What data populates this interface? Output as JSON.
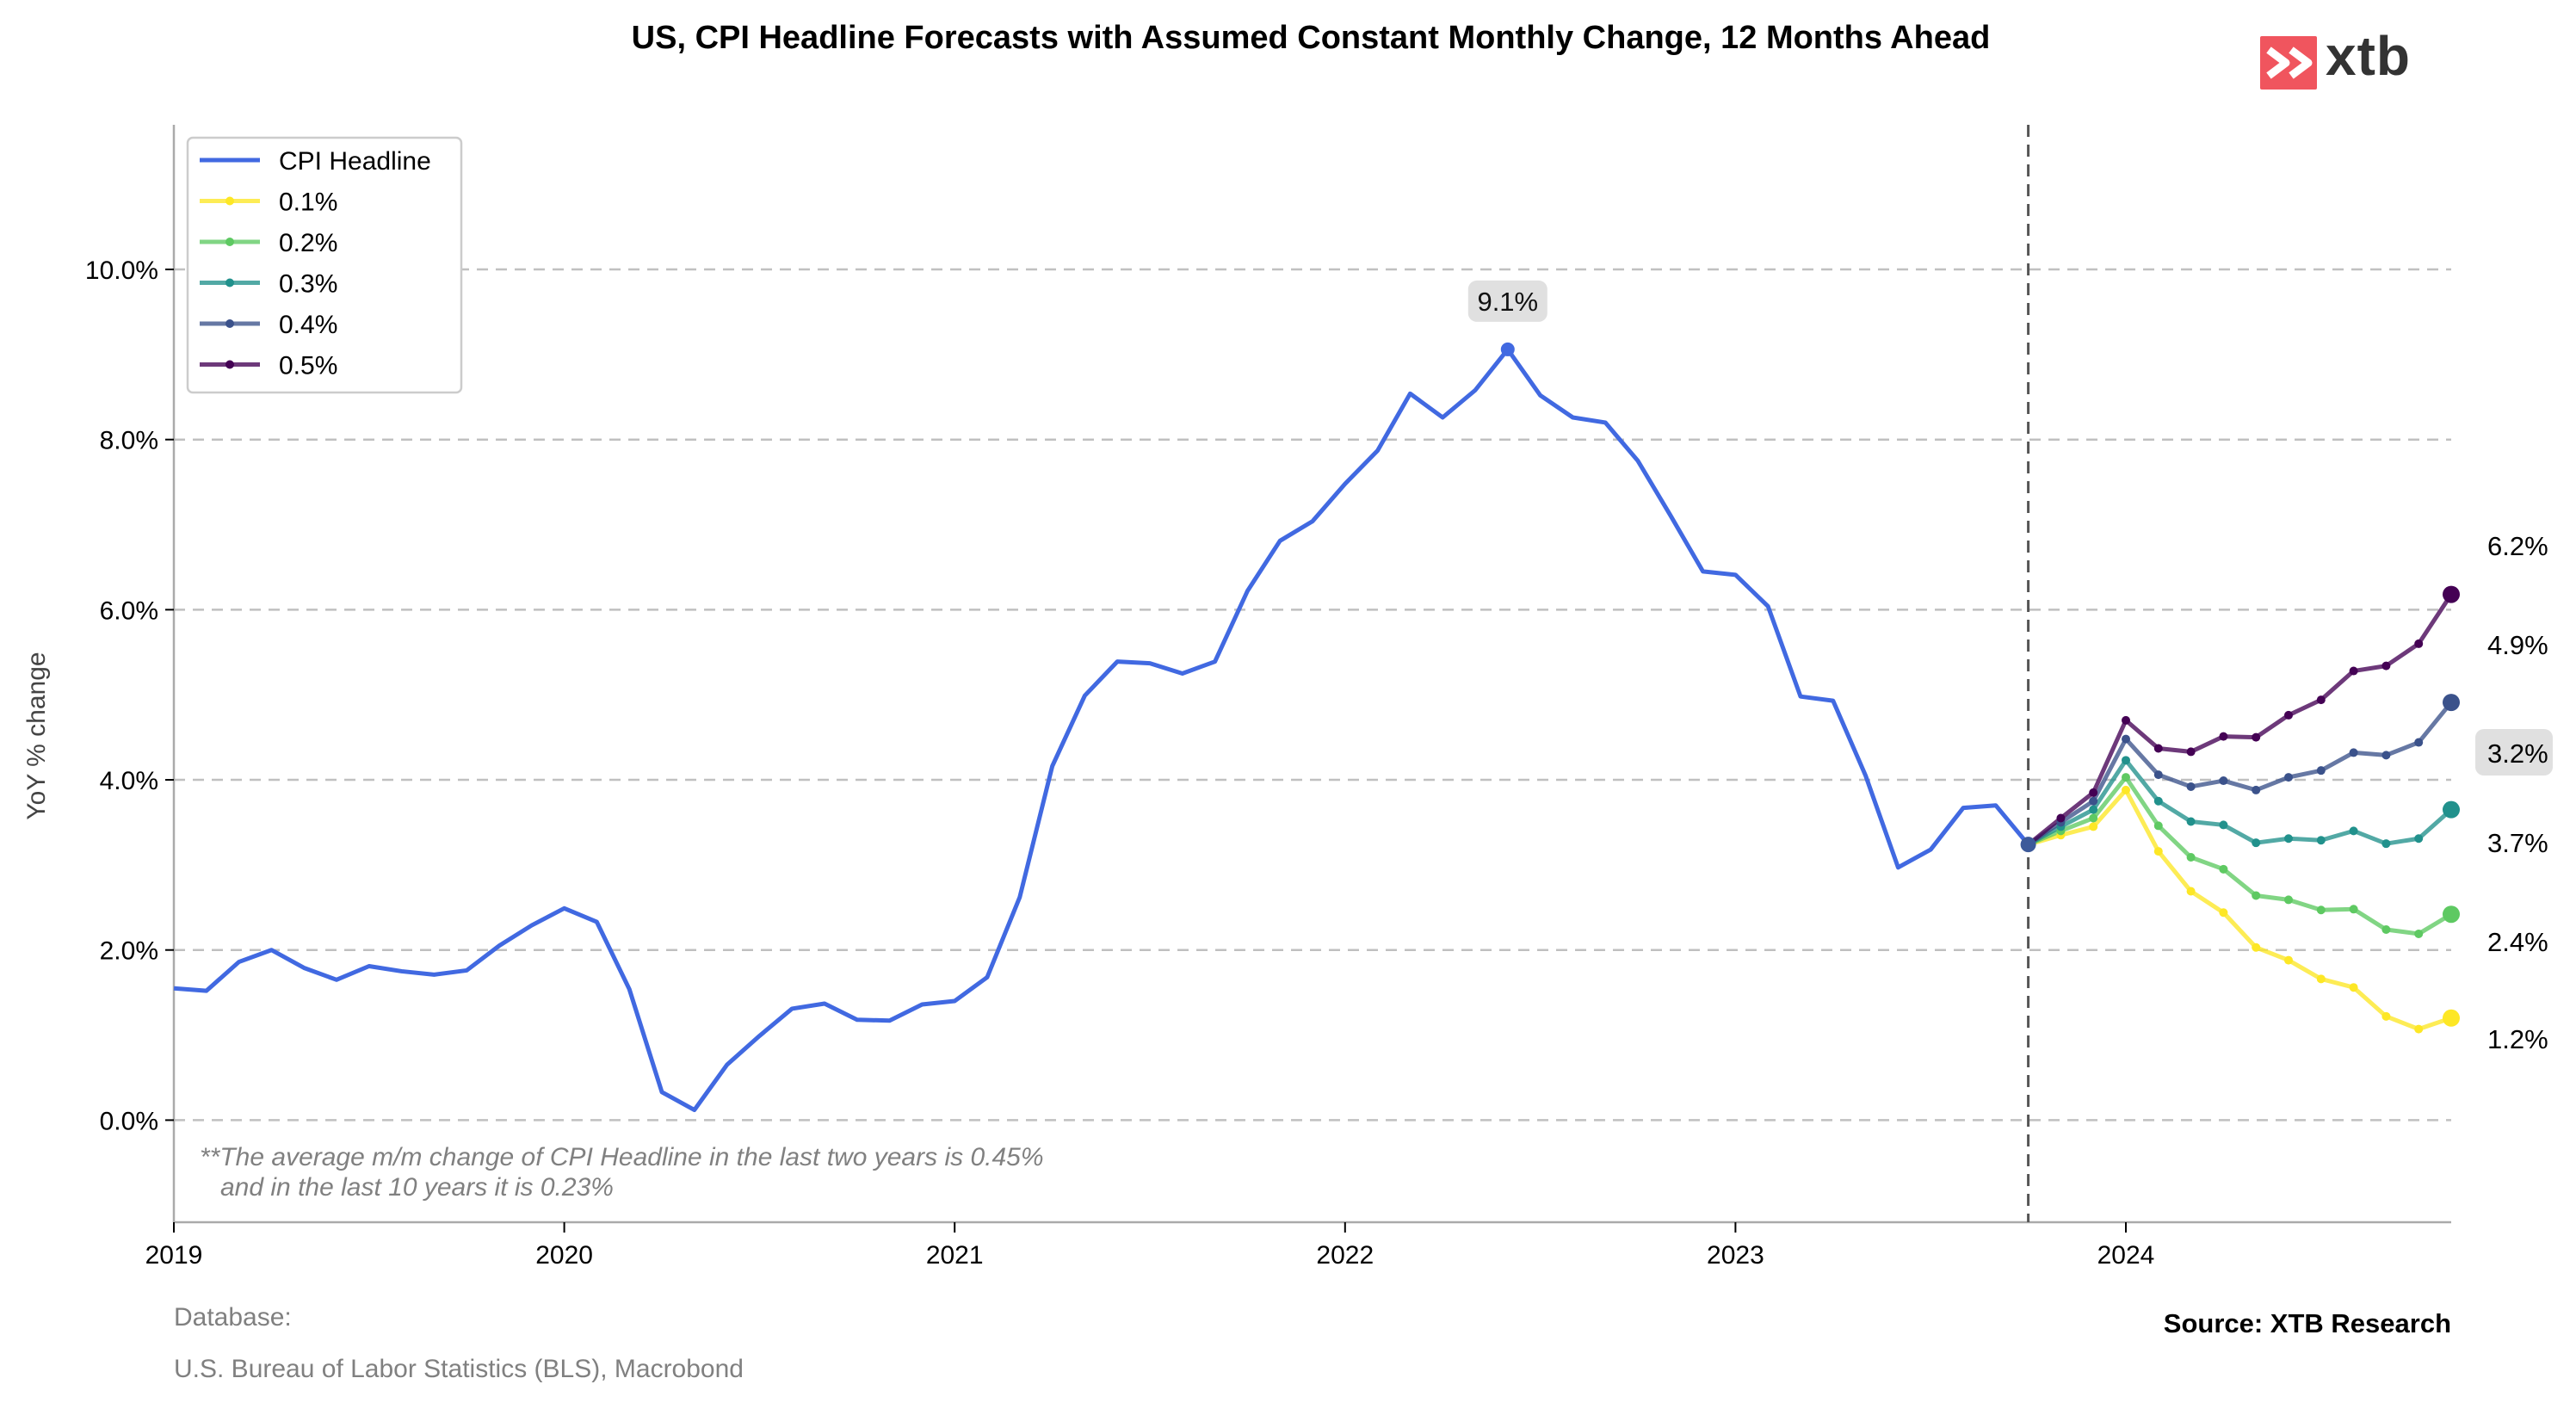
{
  "title": "US, CPI Headline Forecasts with Assumed Constant Monthly Change, 12 Months Ahead",
  "logo_text": "xtb",
  "footer": {
    "database_label": "Database:",
    "database_sources": "U.S. Bureau of Labor Statistics (BLS), Macrobond",
    "source": "Source: XTB Research"
  },
  "note": {
    "line1": "**The average m/m change of CPI Headline in the last two years is 0.45%",
    "line2": "and in the last 10 years it is 0.23%"
  },
  "peak_label": "9.1%",
  "colors": {
    "cpi": "#4169e1",
    "f01": "#fde725",
    "f02": "#5ec962",
    "f03": "#21918c",
    "f04": "#3b528b",
    "f05": "#440154",
    "grid": "#c0c0c0",
    "vline": "#555555",
    "note": "#808080"
  },
  "chart_data": {
    "type": "line",
    "title": "US, CPI Headline Forecasts with Assumed Constant Monthly Change, 12 Months Ahead",
    "ylabel": "YoY % change",
    "xlabel": "",
    "x_ticks": [
      "2019",
      "2020",
      "2021",
      "2022",
      "2023",
      "2024"
    ],
    "y_ticks": [
      "0.0%",
      "2.0%",
      "4.0%",
      "6.0%",
      "8.0%",
      "10.0%"
    ],
    "ylim": [
      -1.2,
      11.7
    ],
    "xlim": [
      "2019-01",
      "2024-11"
    ],
    "grid": "horizontal dashed",
    "legend_position": "upper left",
    "vertical_line_at": "2023-10",
    "cpi": {
      "name": "CPI Headline",
      "start": "2019-01",
      "values": [
        1.55,
        1.52,
        1.86,
        2.0,
        1.79,
        1.65,
        1.81,
        1.75,
        1.71,
        1.76,
        2.05,
        2.29,
        2.49,
        2.33,
        1.54,
        0.33,
        0.12,
        0.65,
        0.99,
        1.31,
        1.37,
        1.18,
        1.17,
        1.36,
        1.4,
        1.68,
        2.62,
        4.16,
        4.99,
        5.39,
        5.37,
        5.25,
        5.39,
        6.22,
        6.81,
        7.04,
        7.48,
        7.87,
        8.54,
        8.26,
        8.58,
        9.06,
        8.52,
        8.26,
        8.2,
        7.75,
        7.11,
        6.45,
        6.41,
        6.04,
        4.98,
        4.93,
        4.05,
        2.97,
        3.18,
        3.67,
        3.7,
        3.24
      ]
    },
    "series": [
      {
        "name": "0.1%",
        "start": "2023-10",
        "values": [
          3.24,
          3.35,
          3.45,
          3.88,
          3.16,
          2.69,
          2.44,
          2.03,
          1.88,
          1.66,
          1.56,
          1.22,
          1.07,
          1.2
        ],
        "end_label": "1.2%"
      },
      {
        "name": "0.2%",
        "start": "2023-10",
        "values": [
          3.24,
          3.4,
          3.55,
          4.03,
          3.46,
          3.09,
          2.95,
          2.64,
          2.59,
          2.47,
          2.48,
          2.24,
          2.19,
          2.42
        ],
        "end_label": "2.4%"
      },
      {
        "name": "0.3%",
        "start": "2023-10",
        "values": [
          3.24,
          3.45,
          3.65,
          4.23,
          3.75,
          3.51,
          3.47,
          3.26,
          3.31,
          3.29,
          3.4,
          3.25,
          3.31,
          3.65
        ],
        "end_label": "3.7%"
      },
      {
        "name": "0.4%",
        "start": "2023-10",
        "values": [
          3.24,
          3.5,
          3.75,
          4.48,
          4.06,
          3.92,
          3.99,
          3.88,
          4.03,
          4.11,
          4.32,
          4.29,
          4.44,
          4.91
        ],
        "end_label": "4.9%"
      },
      {
        "name": "0.5%",
        "start": "2023-10",
        "values": [
          3.24,
          3.55,
          3.85,
          4.7,
          4.37,
          4.33,
          4.51,
          4.5,
          4.76,
          4.94,
          5.28,
          5.34,
          5.6,
          6.18
        ],
        "end_label": "6.2%"
      }
    ],
    "extra_label": "3.2%",
    "annotations": [
      {
        "text": "9.1%",
        "at": "2022-06"
      }
    ]
  }
}
